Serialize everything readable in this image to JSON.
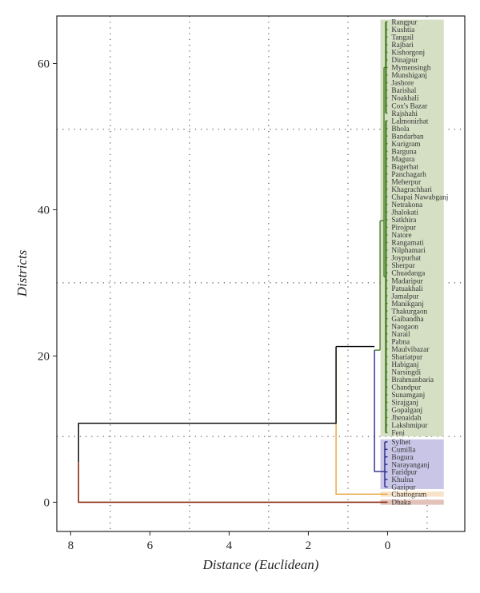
{
  "chart_data": {
    "type": "dendrogram",
    "orientation": "horizontal, root on left",
    "xlabel": "Distance (Euclidean)",
    "ylabel": "Districts",
    "x_axis_reversed": true,
    "xlim": [
      8.35,
      -1.95
    ],
    "ylim": [
      -4,
      66.5
    ],
    "x_ticks": [
      8,
      6,
      4,
      2,
      0
    ],
    "y_ticks": [
      0,
      20,
      40,
      60
    ],
    "grid": "dotted",
    "grid_x": [
      7,
      5,
      3,
      1,
      -1
    ],
    "grid_y": [
      9,
      30,
      51
    ],
    "leaves": [
      "Rangpur",
      "Kushtia",
      "Tangail",
      "Rajbari",
      "Kishorgonj",
      "Dinajpur",
      "Mymensingh",
      "Munshiganj",
      "Jashore",
      "Barishal",
      "Noakhali",
      "Cox's Bazar",
      "Rajshahi",
      "Lalmonirhat",
      "Bhola",
      "Bandarban",
      "Kurigram",
      "Barguna",
      "Magura",
      "Bagerhat",
      "Panchagarh",
      "Meherpur",
      "Khagrachhari",
      "Chapai Nawabganj",
      "Netrakona",
      "Jhalokati",
      "Satkhira",
      "Pirojpur",
      "Natore",
      "Rangamati",
      "Nilphamari",
      "Joypurhat",
      "Sherpur",
      "Chuadanga",
      "Madaripur",
      "Patuakhali",
      "Jamalpur",
      "Manikganj",
      "Thakurgaon",
      "Gaibandha",
      "Naogaon",
      "Narail",
      "Pabna",
      "Maulvibazar",
      "Shariatpur",
      "Habiganj",
      "Narsingdi",
      "Brahmanbaria",
      "Chandpur",
      "Sunamganj",
      "Sirajganj",
      "Gopalganj",
      "Jhenaidah",
      "Lakshmipur",
      "Feni",
      "Sylhet",
      "Cumilla",
      "Bogura",
      "Narayanganj",
      "Faridpur",
      "Khulna",
      "Gazipur",
      "Chattogram",
      "Dhaka"
    ],
    "clusters": [
      {
        "name": "green",
        "color": "#3f7a1e",
        "fill": "#d5dfc4",
        "first_leaf": "Rangpur",
        "last_leaf": "Feni",
        "y_range": [
          9,
          66
        ]
      },
      {
        "name": "blue",
        "color": "#2b2a8a",
        "fill": "#c8c5e6",
        "first_leaf": "Sylhet",
        "last_leaf": "Gazipur",
        "y_range": [
          1.8,
          8.6
        ]
      },
      {
        "name": "orange",
        "color": "#e8a33a",
        "fill": "#f8e3c8",
        "first_leaf": "Chattogram",
        "last_leaf": "Chattogram",
        "y_range": [
          0.75,
          1.45
        ]
      },
      {
        "name": "darkred",
        "color": "#8b2a15",
        "fill": "#e2c2b8",
        "first_leaf": "Dhaka",
        "last_leaf": "Dhaka",
        "y_range": [
          -0.35,
          0.35
        ]
      }
    ],
    "merges": [
      {
        "members": [
          "green",
          "blue"
        ],
        "height": 0.33,
        "color": "#2b2a8a"
      },
      {
        "members": [
          "green+blue",
          "Chattogram"
        ],
        "height": 1.3,
        "color": "#e8a33a"
      },
      {
        "members": [
          "green+blue+Chattogram",
          "Dhaka"
        ],
        "height": 7.8,
        "color": "#000000"
      }
    ],
    "colors": {
      "axis": "#222222",
      "grid": "#333333",
      "root_link": "#000000"
    }
  }
}
